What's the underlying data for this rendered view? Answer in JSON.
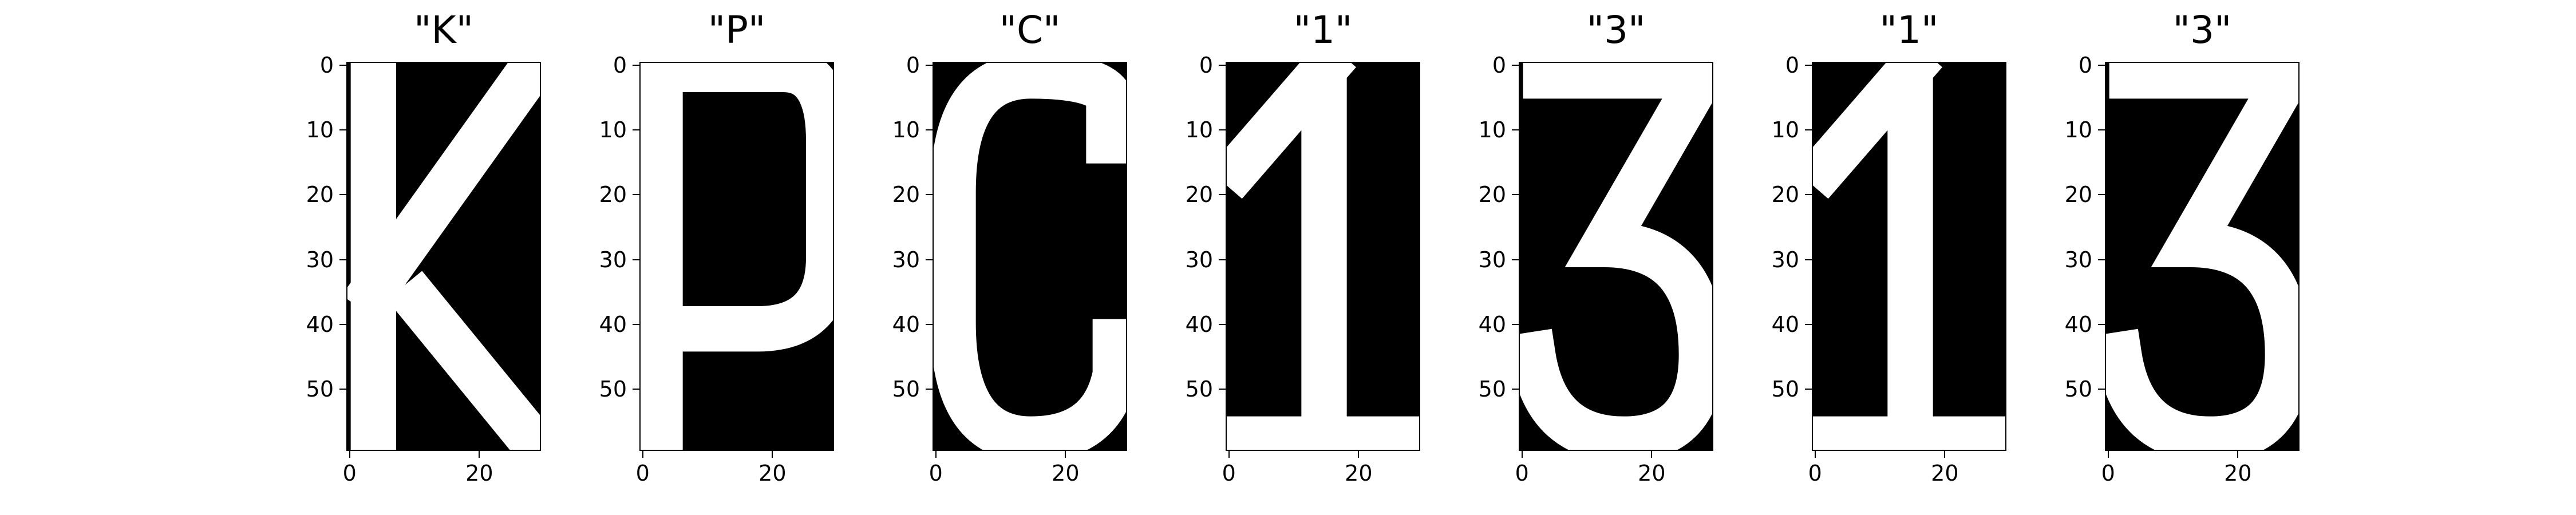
{
  "figure": {
    "background": "#ffffff",
    "foreground": "#000000",
    "glyph_color": "#ffffff"
  },
  "chart_data": [
    {
      "type": "heatmap",
      "title": "\"K\"",
      "xlim": [
        0,
        30
      ],
      "ylim": [
        60,
        0
      ],
      "xticks": [
        "0",
        "20"
      ],
      "yticks": [
        "0",
        "10",
        "20",
        "30",
        "40",
        "50"
      ],
      "colormap": "binary (black=0, white=1)",
      "glyph": "K"
    },
    {
      "type": "heatmap",
      "title": "\"P\"",
      "xlim": [
        0,
        30
      ],
      "ylim": [
        60,
        0
      ],
      "xticks": [
        "0",
        "20"
      ],
      "yticks": [
        "0",
        "10",
        "20",
        "30",
        "40",
        "50"
      ],
      "colormap": "binary (black=0, white=1)",
      "glyph": "P"
    },
    {
      "type": "heatmap",
      "title": "\"C\"",
      "xlim": [
        0,
        30
      ],
      "ylim": [
        60,
        0
      ],
      "xticks": [
        "0",
        "20"
      ],
      "yticks": [
        "0",
        "10",
        "20",
        "30",
        "40",
        "50"
      ],
      "colormap": "binary (black=0, white=1)",
      "glyph": "C"
    },
    {
      "type": "heatmap",
      "title": "\"1\"",
      "xlim": [
        0,
        30
      ],
      "ylim": [
        60,
        0
      ],
      "xticks": [
        "0",
        "20"
      ],
      "yticks": [
        "0",
        "10",
        "20",
        "30",
        "40",
        "50"
      ],
      "colormap": "binary (black=0, white=1)",
      "glyph": "1"
    },
    {
      "type": "heatmap",
      "title": "\"3\"",
      "xlim": [
        0,
        30
      ],
      "ylim": [
        60,
        0
      ],
      "xticks": [
        "0",
        "20"
      ],
      "yticks": [
        "0",
        "10",
        "20",
        "30",
        "40",
        "50"
      ],
      "colormap": "binary (black=0, white=1)",
      "glyph": "3"
    },
    {
      "type": "heatmap",
      "title": "\"1\"",
      "xlim": [
        0,
        30
      ],
      "ylim": [
        60,
        0
      ],
      "xticks": [
        "0",
        "20"
      ],
      "yticks": [
        "0",
        "10",
        "20",
        "30",
        "40",
        "50"
      ],
      "colormap": "binary (black=0, white=1)",
      "glyph": "1"
    },
    {
      "type": "heatmap",
      "title": "\"3\"",
      "xlim": [
        0,
        30
      ],
      "ylim": [
        60,
        0
      ],
      "xticks": [
        "0",
        "20"
      ],
      "yticks": [
        "0",
        "10",
        "20",
        "30",
        "40",
        "50"
      ],
      "colormap": "binary (black=0, white=1)",
      "glyph": "3"
    }
  ]
}
